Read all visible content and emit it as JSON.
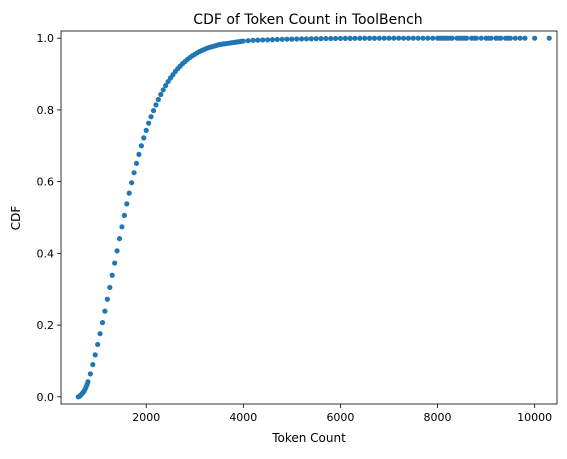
{
  "chart_data": {
    "type": "scatter",
    "title": "CDF of Token Count in ToolBench",
    "xlabel": "Token Count",
    "ylabel": "CDF",
    "xlim": [
      245,
      10460
    ],
    "ylim": [
      -0.02,
      1.02
    ],
    "xticks": [
      2000,
      4000,
      6000,
      8000,
      10000
    ],
    "xtick_labels": [
      "2000",
      "4000",
      "6000",
      "8000",
      "10000"
    ],
    "yticks": [
      0.0,
      0.2,
      0.4,
      0.6,
      0.8,
      1.0
    ],
    "ytick_labels": [
      "0.0",
      "0.2",
      "0.4",
      "0.6",
      "0.8",
      "1.0"
    ],
    "grid": false,
    "marker_color": "#1f77b4",
    "series": [
      {
        "x": [
          600,
          620,
          640,
          660,
          680,
          700,
          720,
          740,
          760,
          780,
          800,
          850,
          900,
          950,
          1000,
          1050,
          1100,
          1150,
          1200,
          1250,
          1300,
          1350,
          1400,
          1450,
          1500,
          1550,
          1600,
          1650,
          1700,
          1750,
          1800,
          1850,
          1900,
          1950,
          2000,
          2050,
          2100,
          2150,
          2200,
          2250,
          2300,
          2350,
          2400,
          2450,
          2500,
          2550,
          2600,
          2650,
          2700,
          2750,
          2800,
          2850,
          2900,
          2950,
          3000,
          3050,
          3100,
          3150,
          3200,
          3250,
          3300,
          3350,
          3400,
          3450,
          3500,
          3550,
          3600,
          3650,
          3700,
          3750,
          3800,
          3850,
          3900,
          3950,
          4000,
          4100,
          4200,
          4300,
          4400,
          4500,
          4600,
          4700,
          4800,
          4900,
          5000,
          5100,
          5200,
          5300,
          5400,
          5500,
          5600,
          5700,
          5800,
          5900,
          6000,
          6100,
          6200,
          6300,
          6400,
          6500,
          6600,
          6700,
          6800,
          6900,
          7000,
          7100,
          7200,
          7300,
          7400,
          7500,
          7600,
          7700,
          7800,
          7900,
          8000,
          8050,
          8100,
          8150,
          8200,
          8250,
          8300,
          8400,
          8450,
          8500,
          8550,
          8600,
          8700,
          8750,
          8800,
          8900,
          9000,
          9050,
          9100,
          9200,
          9250,
          9300,
          9400,
          9450,
          9500,
          9600,
          9700,
          9800,
          10000,
          10300
        ],
        "y": [
          0.0,
          0.001,
          0.003,
          0.006,
          0.009,
          0.012,
          0.016,
          0.021,
          0.027,
          0.034,
          0.042,
          0.064,
          0.09,
          0.117,
          0.146,
          0.176,
          0.207,
          0.239,
          0.272,
          0.305,
          0.339,
          0.373,
          0.407,
          0.441,
          0.474,
          0.506,
          0.538,
          0.568,
          0.597,
          0.625,
          0.651,
          0.676,
          0.7,
          0.722,
          0.743,
          0.763,
          0.781,
          0.798,
          0.814,
          0.829,
          0.843,
          0.856,
          0.868,
          0.879,
          0.889,
          0.898,
          0.907,
          0.915,
          0.922,
          0.929,
          0.935,
          0.941,
          0.946,
          0.951,
          0.955,
          0.959,
          0.963,
          0.966,
          0.969,
          0.972,
          0.974,
          0.976,
          0.978,
          0.98,
          0.982,
          0.983,
          0.984,
          0.985,
          0.986,
          0.987,
          0.988,
          0.989,
          0.99,
          0.991,
          0.992,
          0.993,
          0.994,
          0.9945,
          0.995,
          0.9955,
          0.996,
          0.9964,
          0.9968,
          0.9971,
          0.9974,
          0.9977,
          0.998,
          0.9982,
          0.9984,
          0.9986,
          0.9988,
          0.999,
          0.9991,
          0.9992,
          0.9993,
          0.9994,
          0.9995,
          0.9996,
          0.9997,
          0.99975,
          0.9998,
          0.99984,
          0.99988,
          0.9999,
          0.99992,
          0.99993,
          0.99994,
          0.99995,
          0.99996,
          0.99997,
          0.99997,
          0.99998,
          0.99998,
          0.99998,
          0.99999,
          0.99999,
          0.99999,
          0.99999,
          0.99999,
          0.99999,
          0.99999,
          1.0,
          1.0,
          1.0,
          1.0,
          1.0,
          1.0,
          1.0,
          1.0,
          1.0,
          1.0,
          1.0,
          1.0,
          1.0,
          1.0,
          1.0,
          1.0,
          1.0,
          1.0,
          1.0,
          1.0,
          1.0,
          1.0,
          1.0
        ]
      }
    ]
  }
}
